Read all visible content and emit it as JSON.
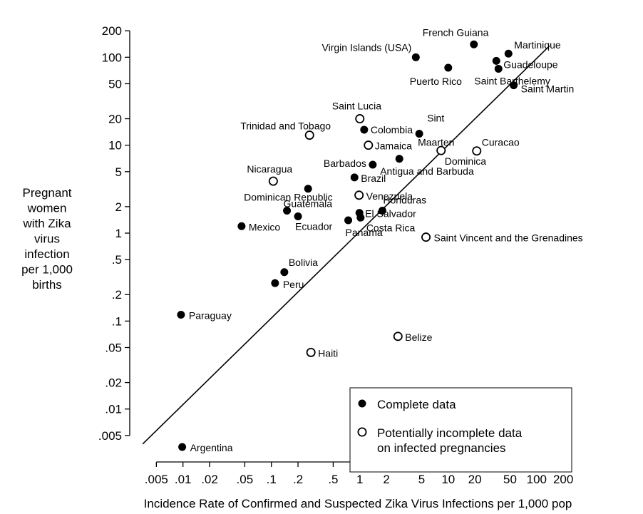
{
  "chart_data": {
    "type": "scatter",
    "xlabel": "Incidence Rate of Confirmed and Suspected Zika Virus Infections per 1,000 pop",
    "ylabel_lines": [
      "Pregnant",
      "women",
      "with Zika",
      "virus",
      "infection",
      "per 1,000",
      "births"
    ],
    "x_scale": "log",
    "y_scale": "log",
    "xlim": [
      0.0025,
      300
    ],
    "ylim": [
      0.0025,
      320
    ],
    "x_ticks": [
      {
        "value": 0.005,
        "label": ".005"
      },
      {
        "value": 0.01,
        "label": ".01"
      },
      {
        "value": 0.02,
        "label": ".02"
      },
      {
        "value": 0.05,
        "label": ".05"
      },
      {
        "value": 0.1,
        "label": ".1"
      },
      {
        "value": 0.2,
        "label": ".2"
      },
      {
        "value": 0.5,
        "label": ".5"
      },
      {
        "value": 1,
        "label": "1"
      },
      {
        "value": 2,
        "label": "2"
      },
      {
        "value": 5,
        "label": "5"
      },
      {
        "value": 10,
        "label": "10"
      },
      {
        "value": 20,
        "label": "20"
      },
      {
        "value": 50,
        "label": "50"
      },
      {
        "value": 100,
        "label": "100"
      },
      {
        "value": 200,
        "label": "200"
      }
    ],
    "y_ticks": [
      {
        "value": 200,
        "label": "200"
      },
      {
        "value": 100,
        "label": "100"
      },
      {
        "value": 50,
        "label": "50"
      },
      {
        "value": 20,
        "label": "20"
      },
      {
        "value": 10,
        "label": "10"
      },
      {
        "value": 5,
        "label": "5"
      },
      {
        "value": 2,
        "label": "2"
      },
      {
        "value": 1,
        "label": "1"
      },
      {
        "value": 0.5,
        "label": ".5"
      },
      {
        "value": 0.2,
        "label": ".2"
      },
      {
        "value": 0.1,
        "label": ".1"
      },
      {
        "value": 0.05,
        "label": ".05"
      },
      {
        "value": 0.02,
        "label": ".02"
      },
      {
        "value": 0.01,
        "label": ".01"
      },
      {
        "value": 0.005,
        "label": ".005"
      }
    ],
    "fit_line": {
      "x": [
        0.0035,
        140
      ],
      "y": [
        0.004,
        135
      ]
    },
    "legend": {
      "position": "bottom-right",
      "entries": [
        {
          "series": "complete",
          "lines": [
            "Complete data"
          ]
        },
        {
          "series": "incomplete",
          "lines": [
            "Potentially incomplete data",
            "on infected pregnancies"
          ]
        }
      ]
    },
    "points": [
      {
        "name": "French Guiana",
        "x": 19.5,
        "y": 140,
        "complete": true
      },
      {
        "name": "Martinique",
        "x": 48,
        "y": 110,
        "complete": true
      },
      {
        "name": "Virgin Islands (USA)",
        "x": 4.3,
        "y": 100,
        "complete": true
      },
      {
        "name": "Guadeloupe",
        "x": 35,
        "y": 91,
        "complete": true
      },
      {
        "name": "Puerto Rico",
        "x": 10,
        "y": 76,
        "complete": true
      },
      {
        "name": "Saint Barthelemy",
        "x": 37,
        "y": 74,
        "complete": true
      },
      {
        "name": "Saint Martin",
        "x": 55,
        "y": 48,
        "complete": true
      },
      {
        "name": "Saint Lucia",
        "x": 1.0,
        "y": 20,
        "complete": false
      },
      {
        "name": "Colombia",
        "x": 1.12,
        "y": 15,
        "complete": true
      },
      {
        "name": "Trinidad and Tobago",
        "x": 0.27,
        "y": 13,
        "complete": false
      },
      {
        "name": "Sint Maarten",
        "x": 4.7,
        "y": 13.5,
        "complete": true
      },
      {
        "name": "Jamaica",
        "x": 1.25,
        "y": 10,
        "complete": false
      },
      {
        "name": "Dominica",
        "x": 8.3,
        "y": 8.7,
        "complete": false
      },
      {
        "name": "Curacao",
        "x": 21,
        "y": 8.6,
        "complete": false
      },
      {
        "name": "Antigua and Barbuda",
        "x": 2.8,
        "y": 7,
        "complete": true
      },
      {
        "name": "Barbados",
        "x": 1.4,
        "y": 6,
        "complete": true
      },
      {
        "name": "Brazil",
        "x": 0.87,
        "y": 4.3,
        "complete": true
      },
      {
        "name": "Nicaragua",
        "x": 0.105,
        "y": 3.9,
        "complete": false
      },
      {
        "name": "Dominican Republic",
        "x": 0.26,
        "y": 3.2,
        "complete": true
      },
      {
        "name": "Venezuela",
        "x": 0.98,
        "y": 2.7,
        "complete": false
      },
      {
        "name": "Guatemala",
        "x": 0.15,
        "y": 1.8,
        "complete": true
      },
      {
        "name": "Honduras",
        "x": 1.8,
        "y": 1.8,
        "complete": true
      },
      {
        "name": "El Salvador",
        "x": 0.99,
        "y": 1.7,
        "complete": true
      },
      {
        "name": "Ecuador",
        "x": 0.2,
        "y": 1.55,
        "complete": true
      },
      {
        "name": "Costa Rica",
        "x": 1.02,
        "y": 1.5,
        "complete": true
      },
      {
        "name": "Panama",
        "x": 0.74,
        "y": 1.4,
        "complete": true
      },
      {
        "name": "Mexico",
        "x": 0.046,
        "y": 1.2,
        "complete": true
      },
      {
        "name": "Saint Vincent and the Grenadines",
        "x": 5.6,
        "y": 0.9,
        "complete": false
      },
      {
        "name": "Bolivia",
        "x": 0.14,
        "y": 0.36,
        "complete": true
      },
      {
        "name": "Peru",
        "x": 0.11,
        "y": 0.27,
        "complete": true
      },
      {
        "name": "Paraguay",
        "x": 0.0095,
        "y": 0.118,
        "complete": true
      },
      {
        "name": "Belize",
        "x": 2.7,
        "y": 0.067,
        "complete": false
      },
      {
        "name": "Haiti",
        "x": 0.28,
        "y": 0.044,
        "complete": false
      },
      {
        "name": "Argentina",
        "x": 0.0098,
        "y": 0.0037,
        "complete": true
      }
    ]
  }
}
